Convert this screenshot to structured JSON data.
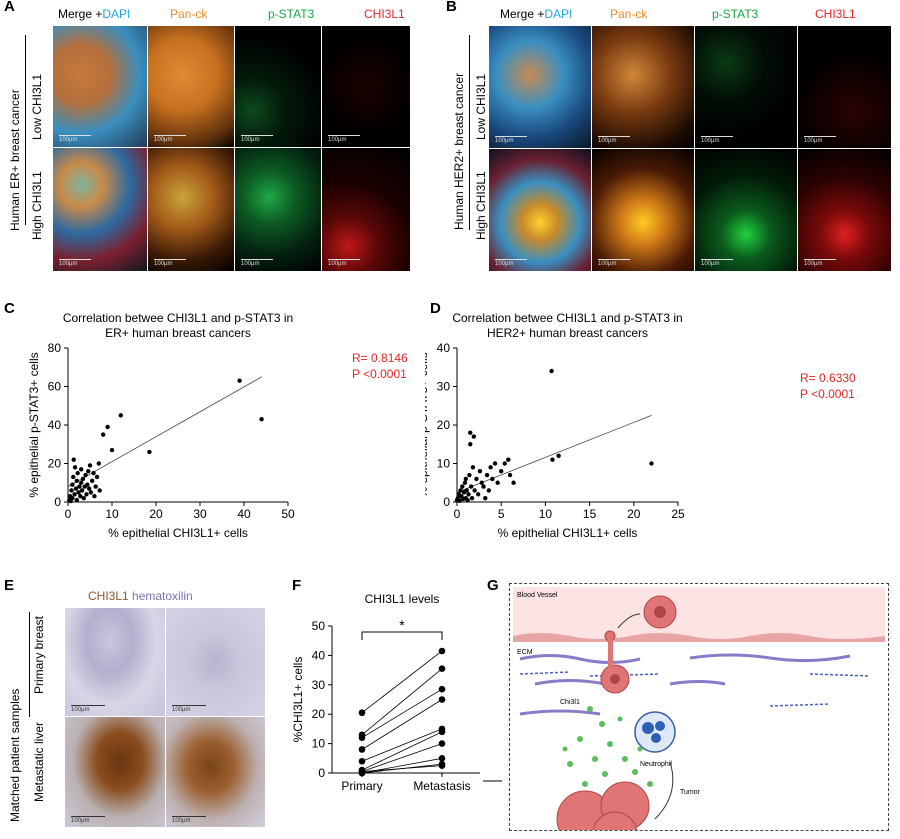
{
  "panelA": {
    "letter": "A",
    "channels": [
      "Merge +",
      "DAPI",
      "Pan-ck",
      "p-STAT3",
      "CHI3L1"
    ],
    "channel_colors": [
      "#000000",
      "#1ea7e0",
      "#f08a24",
      "#17a844",
      "#e32626"
    ],
    "side_label": "Human ER+ breast cancer",
    "rows": [
      "Low CHI3L1",
      "High CHI3L1"
    ],
    "scale": "100µm"
  },
  "panelB": {
    "letter": "B",
    "channels": [
      "Merge +",
      "DAPI",
      "Pan-ck",
      "p-STAT3",
      "CHI3L1"
    ],
    "side_label": "Human HER2+ breast cancer",
    "rows": [
      "Low CHI3L1",
      "High CHI3L1"
    ],
    "scale": "100µm"
  },
  "panelC": {
    "letter": "C",
    "stat_r": "R= 0.8146",
    "stat_p": "P <0.0001",
    "stat_color": "#e32626"
  },
  "panelD": {
    "letter": "D",
    "stat_r": "R= 0.6330",
    "stat_p": "P <0.0001",
    "stat_color": "#e32626"
  },
  "panelE": {
    "letter": "E",
    "stain": "CHI3L1",
    "counter": "hematoxilin",
    "stain_color": "#8b5a2b",
    "counter_color": "#7b74b0",
    "side_label": "Matched patient samples",
    "rows": [
      "Primary breast",
      "Metastatic liver"
    ],
    "scale": "100µm"
  },
  "panelF": {
    "letter": "F",
    "significance": "*"
  },
  "panelG": {
    "letter": "G",
    "labels": {
      "vessel": "Blood Vessel",
      "ecm": "ECM",
      "chi": "Chi3l1",
      "neutrophil": "Neutrophil",
      "tumor": "Tumor"
    }
  },
  "chart_data": [
    {
      "type": "scatter",
      "title": "Correlation betwee CHI3L1 and p-STAT3 in ER+ human breast cancers",
      "xlabel": "% epithelial CHI3L1+ cells",
      "ylabel": "% epithelial p-STAT3+ cells",
      "xlim": [
        0,
        50
      ],
      "ylim": [
        0,
        80
      ],
      "xticks": [
        "0",
        "10",
        "20",
        "30",
        "40",
        "50"
      ],
      "yticks": [
        "0",
        "20",
        "40",
        "60",
        "80"
      ],
      "points": [
        [
          0.3,
          1
        ],
        [
          0.5,
          3
        ],
        [
          0.6,
          0.5
        ],
        [
          0.8,
          6
        ],
        [
          1,
          2
        ],
        [
          1,
          9
        ],
        [
          1.2,
          13
        ],
        [
          1.3,
          22
        ],
        [
          1.5,
          4
        ],
        [
          1.6,
          18
        ],
        [
          1.8,
          7
        ],
        [
          2,
          1
        ],
        [
          2,
          11
        ],
        [
          2.2,
          15
        ],
        [
          2.4,
          5
        ],
        [
          2.6,
          8
        ],
        [
          2.8,
          3
        ],
        [
          3,
          10
        ],
        [
          3,
          17
        ],
        [
          3.2,
          6
        ],
        [
          3.4,
          12
        ],
        [
          3.6,
          2
        ],
        [
          3.8,
          8
        ],
        [
          4,
          14
        ],
        [
          4.2,
          4
        ],
        [
          4.4,
          9
        ],
        [
          4.6,
          16
        ],
        [
          4.8,
          7
        ],
        [
          5,
          19
        ],
        [
          5.2,
          5
        ],
        [
          5.5,
          11
        ],
        [
          5.8,
          15
        ],
        [
          6,
          3
        ],
        [
          6.3,
          8
        ],
        [
          6.6,
          13
        ],
        [
          7,
          20
        ],
        [
          7.2,
          6
        ],
        [
          8,
          35
        ],
        [
          9,
          39
        ],
        [
          10,
          27
        ],
        [
          12,
          45
        ],
        [
          18.5,
          26
        ],
        [
          39,
          63
        ],
        [
          44,
          43
        ]
      ],
      "trendline": [
        [
          0,
          8
        ],
        [
          44,
          65
        ]
      ],
      "grid": false
    },
    {
      "type": "scatter",
      "title": "Correlation betwee CHI3L1 and p-STAT3 in HER2+ human breast cancers",
      "xlabel": "% epithelial CHI3L1+ cells",
      "ylabel": "% epithelial p-STAT3+ cells",
      "xlim": [
        0,
        25
      ],
      "ylim": [
        0,
        40
      ],
      "xticks": [
        "0",
        "5",
        "10",
        "15",
        "20",
        "25"
      ],
      "yticks": [
        "0",
        "10",
        "20",
        "30",
        "40"
      ],
      "points": [
        [
          0,
          0.5
        ],
        [
          0.1,
          1
        ],
        [
          0.2,
          2
        ],
        [
          0.3,
          0.3
        ],
        [
          0.4,
          3
        ],
        [
          0.5,
          1.5
        ],
        [
          0.6,
          4
        ],
        [
          0.7,
          0.8
        ],
        [
          0.8,
          2.5
        ],
        [
          0.9,
          5
        ],
        [
          1,
          1
        ],
        [
          1,
          6
        ],
        [
          1.1,
          3
        ],
        [
          1.2,
          0.5
        ],
        [
          1.3,
          2
        ],
        [
          1.4,
          7
        ],
        [
          1.5,
          18
        ],
        [
          1.5,
          15
        ],
        [
          1.6,
          4
        ],
        [
          1.7,
          1
        ],
        [
          1.8,
          9
        ],
        [
          1.9,
          17
        ],
        [
          2,
          3
        ],
        [
          2.2,
          6
        ],
        [
          2.4,
          2
        ],
        [
          2.6,
          8
        ],
        [
          2.8,
          5
        ],
        [
          3,
          4
        ],
        [
          3.2,
          1
        ],
        [
          3.4,
          7
        ],
        [
          3.6,
          3
        ],
        [
          3.8,
          9
        ],
        [
          4,
          6
        ],
        [
          4.3,
          10
        ],
        [
          4.6,
          5
        ],
        [
          5,
          8
        ],
        [
          5.4,
          10
        ],
        [
          5.8,
          11
        ],
        [
          6,
          7
        ],
        [
          6.4,
          5
        ],
        [
          10.7,
          34
        ],
        [
          10.8,
          11
        ],
        [
          11.5,
          12
        ],
        [
          22,
          10
        ]
      ],
      "trendline": [
        [
          0,
          2.5
        ],
        [
          22,
          22.5
        ]
      ],
      "grid": false
    },
    {
      "type": "line",
      "title": "CHI3L1 levels",
      "ylabel": "%CHI3L1+ cells",
      "categories": [
        "Primary",
        "Metastasis"
      ],
      "ylim": [
        0,
        50
      ],
      "yticks": [
        "0",
        "10",
        "20",
        "30",
        "40",
        "50"
      ],
      "pairs": [
        [
          20.5,
          41.5
        ],
        [
          13,
          35.5
        ],
        [
          12,
          28.5
        ],
        [
          8,
          25
        ],
        [
          4,
          15
        ],
        [
          1,
          14
        ],
        [
          0.5,
          10
        ],
        [
          0,
          3
        ],
        [
          0,
          5
        ],
        [
          0.5,
          2.5
        ]
      ],
      "grid": false
    }
  ]
}
